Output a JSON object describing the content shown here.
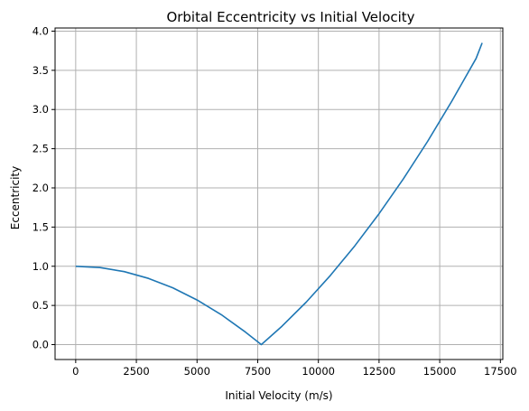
{
  "chart_data": {
    "type": "line",
    "title": "Orbital Eccentricity vs Initial Velocity",
    "xlabel": "Initial Velocity (m/s)",
    "ylabel": "Eccentricity",
    "xlim": [
      -850,
      17600
    ],
    "ylim": [
      -0.19,
      4.04
    ],
    "x_ticks": [
      0,
      2500,
      5000,
      7500,
      10000,
      12500,
      15000,
      17500
    ],
    "x_tick_labels": [
      "0",
      "2500",
      "5000",
      "7500",
      "10000",
      "12500",
      "15000",
      "17500"
    ],
    "y_ticks": [
      0.0,
      0.5,
      1.0,
      1.5,
      2.0,
      2.5,
      3.0,
      3.5,
      4.0
    ],
    "y_tick_labels": [
      "0.0",
      "0.5",
      "1.0",
      "1.5",
      "2.0",
      "2.5",
      "3.0",
      "3.5",
      "4.0"
    ],
    "grid": true,
    "series": [
      {
        "color": "#1f77b4",
        "x": [
          0,
          1000,
          2000,
          3000,
          4000,
          5000,
          6000,
          7000,
          7650,
          8500,
          9500,
          10500,
          11500,
          12500,
          13500,
          14500,
          15500,
          16500,
          16750
        ],
        "y": [
          1.0,
          0.983,
          0.931,
          0.845,
          0.725,
          0.57,
          0.382,
          0.159,
          0.0,
          0.235,
          0.542,
          0.884,
          1.26,
          1.67,
          2.114,
          2.593,
          3.106,
          3.652,
          3.85
        ]
      }
    ]
  }
}
